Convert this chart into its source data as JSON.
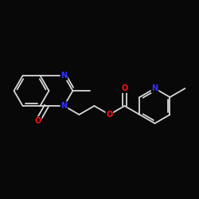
{
  "background_color": "#080808",
  "bond_color": "#d8d8d8",
  "atom_colors": {
    "N": "#3333ff",
    "O": "#ff1111",
    "C": "#d8d8d8"
  },
  "figsize": [
    2.5,
    2.5
  ],
  "dpi": 100
}
